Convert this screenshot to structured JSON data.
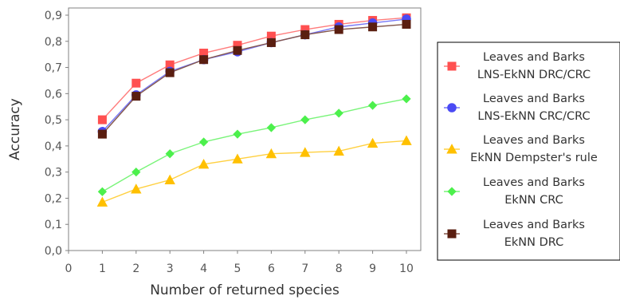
{
  "chart_data": {
    "type": "line",
    "title": "",
    "xlabel": "Number of returned species",
    "ylabel": "Accuracy",
    "xlim": [
      0,
      10
    ],
    "ylim": [
      0,
      0.9
    ],
    "x_ticks": [
      "0",
      "1",
      "2",
      "3",
      "4",
      "5",
      "6",
      "7",
      "8",
      "9",
      "10"
    ],
    "y_ticks": [
      "0,0",
      "0,1",
      "0,2",
      "0,3",
      "0,4",
      "0,5",
      "0,6",
      "0,7",
      "0,8",
      "0,9"
    ],
    "grid": false,
    "legend_position": "right",
    "x": [
      1,
      2,
      3,
      4,
      5,
      6,
      7,
      8,
      9,
      10
    ],
    "series": [
      {
        "name": "Leaves and Barks LNS-EkNN  DRC/CRC",
        "legend_lines": [
          "Leaves and Barks",
          "LNS-EkNN  DRC/CRC"
        ],
        "marker": "square",
        "color": "#ff5050",
        "values": [
          0.5,
          0.64,
          0.71,
          0.755,
          0.785,
          0.82,
          0.845,
          0.865,
          0.88,
          0.89
        ]
      },
      {
        "name": "Leaves and Barks LNS-EkNN CRC/CRC",
        "legend_lines": [
          "Leaves and Barks",
          "LNS-EkNN CRC/CRC"
        ],
        "marker": "circle",
        "color": "#4a4af4",
        "values": [
          0.455,
          0.595,
          0.685,
          0.73,
          0.76,
          0.795,
          0.825,
          0.855,
          0.87,
          0.885
        ]
      },
      {
        "name": "Leaves and Barks EkNN Dempster's rule",
        "legend_lines": [
          "Leaves and Barks",
          "EkNN Dempster's rule"
        ],
        "marker": "triangle",
        "color": "#ffc000",
        "values": [
          0.185,
          0.235,
          0.27,
          0.33,
          0.35,
          0.37,
          0.375,
          0.38,
          0.41,
          0.42
        ]
      },
      {
        "name": "Leaves and Barks EkNN CRC",
        "legend_lines": [
          "Leaves and Barks",
          "EkNN CRC"
        ],
        "marker": "diamond",
        "color": "#4cf04c",
        "values": [
          0.225,
          0.3,
          0.37,
          0.415,
          0.445,
          0.47,
          0.5,
          0.525,
          0.555,
          0.58
        ]
      },
      {
        "name": "Leaves and Barks EkNN DRC",
        "legend_lines": [
          "Leaves and Barks",
          "EkNN DRC"
        ],
        "marker": "square",
        "color": "#5a1e10",
        "values": [
          0.445,
          0.59,
          0.68,
          0.73,
          0.765,
          0.795,
          0.825,
          0.845,
          0.855,
          0.865
        ]
      }
    ]
  }
}
